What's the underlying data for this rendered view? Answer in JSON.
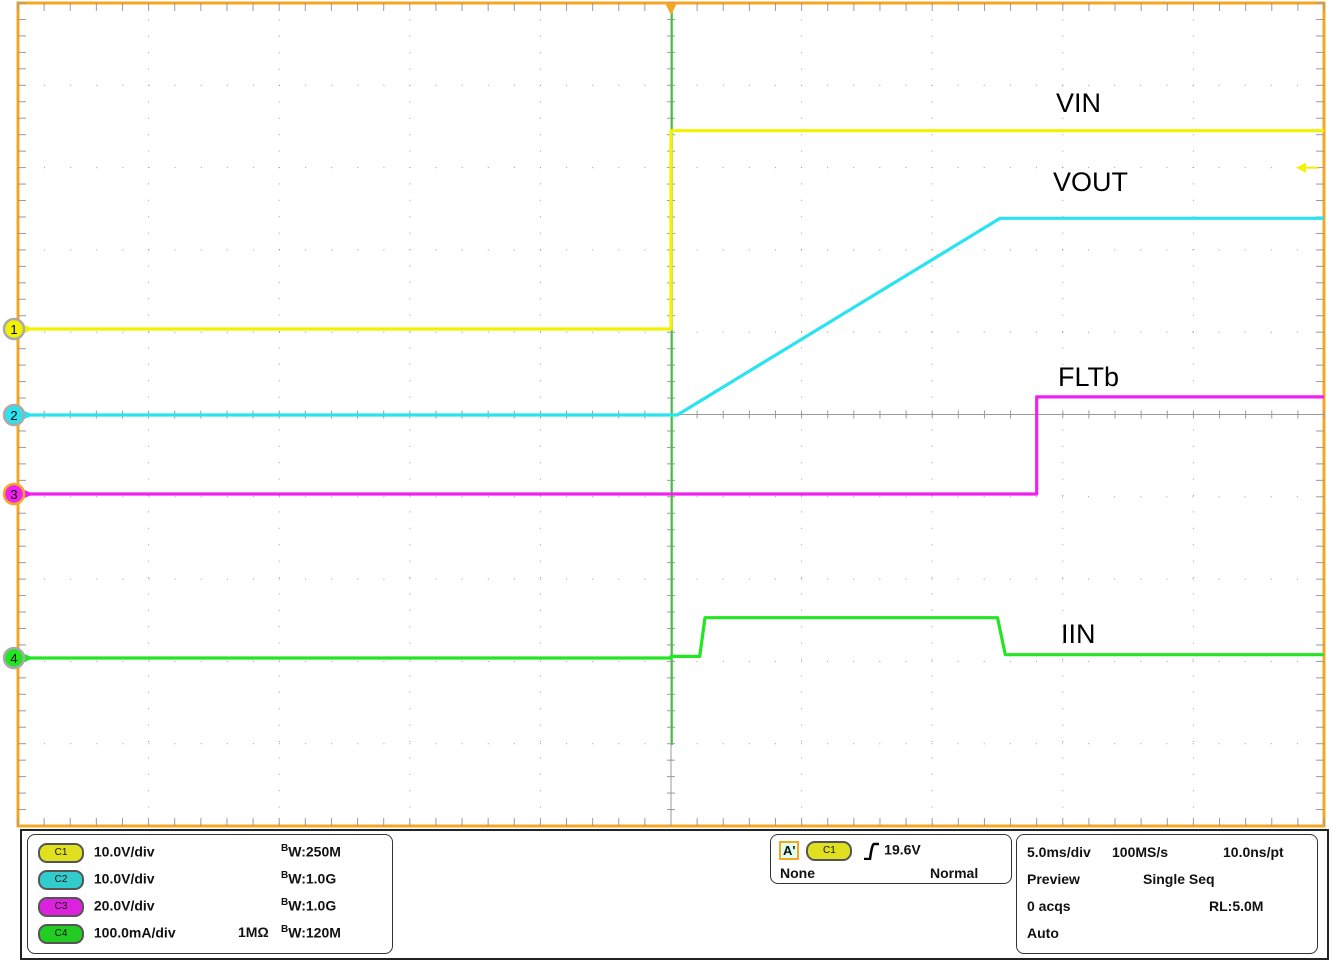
{
  "chart_data": {
    "type": "line",
    "x_unit": "ms",
    "xlim": [
      -25,
      25
    ],
    "x_divisions": 10,
    "y_divisions": 10,
    "grid": true,
    "trigger_time": 0,
    "series": [
      {
        "name": "VIN",
        "channel": "C1",
        "color": "#f2f200",
        "scale_label": "10.0V/div",
        "unit": "V",
        "points": [
          [
            -25,
            0
          ],
          [
            0,
            0
          ],
          [
            0,
            24.1
          ],
          [
            25,
            24.1
          ]
        ]
      },
      {
        "name": "VOUT",
        "channel": "C2",
        "color": "#29e3f0",
        "scale_label": "10.0V/div",
        "unit": "V",
        "points": [
          [
            -25,
            0
          ],
          [
            0.24,
            0
          ],
          [
            12.6,
            23.9
          ],
          [
            25,
            23.9
          ]
        ]
      },
      {
        "name": "FLTb",
        "channel": "C3",
        "color": "#f020f0",
        "scale_label": "20.0V/div",
        "unit": "V",
        "points": [
          [
            -25,
            0
          ],
          [
            14.0,
            0
          ],
          [
            14.0,
            23.6
          ],
          [
            25,
            23.6
          ]
        ]
      },
      {
        "name": "IIN",
        "channel": "C4",
        "color": "#22e622",
        "scale_label": "100.0mA/div",
        "unit": "mA",
        "points": [
          [
            -25,
            0
          ],
          [
            0,
            0
          ],
          [
            0,
            2
          ],
          [
            1.1,
            2
          ],
          [
            1.3,
            49
          ],
          [
            12.5,
            49
          ],
          [
            12.8,
            4
          ],
          [
            25,
            4
          ]
        ]
      }
    ],
    "channel_markers": [
      "1",
      "2",
      "3",
      "4"
    ]
  },
  "colors": {
    "border": "#f5a623",
    "grid": "#9a9a9a"
  },
  "channels": [
    {
      "pill": "C1",
      "scale": "10.0V/div",
      "impedance": "",
      "bw_prefix": "B",
      "bw_sub": "W",
      "bw": ":250M",
      "color": "#e0e020"
    },
    {
      "pill": "C2",
      "scale": "10.0V/div",
      "impedance": "",
      "bw_prefix": "B",
      "bw_sub": "W",
      "bw": ":1.0G",
      "color": "#33cccc"
    },
    {
      "pill": "C3",
      "scale": "20.0V/div",
      "impedance": "",
      "bw_prefix": "B",
      "bw_sub": "W",
      "bw": ":1.0G",
      "color": "#dd22dd"
    },
    {
      "pill": "C4",
      "scale": "100.0mA/div",
      "impedance": "1MΩ",
      "bw_prefix": "B",
      "bw_sub": "W",
      "bw": ":120M",
      "color": "#22cc22"
    }
  ],
  "trigger": {
    "badge": "A'",
    "source": "C1",
    "slope_icon": "rising-edge-icon",
    "level": "19.6V",
    "coupling": "None",
    "mode": "Normal"
  },
  "acquisition": {
    "timebase": "5.0ms/div",
    "sample_rate": "100MS/s",
    "resolution": "10.0ns/pt",
    "state": "Preview",
    "sequence": "Single Seq",
    "acqs": "0 acqs",
    "record_length": "RL:5.0M",
    "trigger_mode": "Auto"
  }
}
